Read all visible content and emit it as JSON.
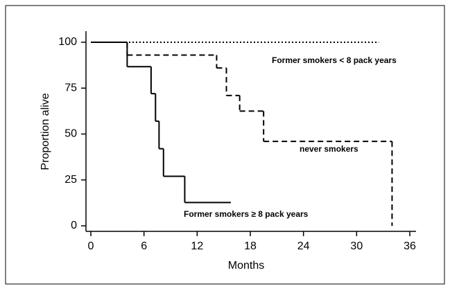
{
  "chart_data": {
    "type": "step",
    "xlabel": "Months",
    "ylabel": "Proportion alive",
    "xlim": [
      0,
      36
    ],
    "ylim": [
      0,
      100
    ],
    "xticks": [
      0,
      6,
      12,
      18,
      24,
      30,
      36
    ],
    "yticks": [
      0,
      25,
      50,
      75,
      100
    ],
    "series": [
      {
        "name": "Former smokers < 8 pack years",
        "color": "#000000",
        "dash": "dotted",
        "x": [
          0,
          32.5
        ],
        "values": [
          100,
          100
        ]
      },
      {
        "name": "never smokers",
        "color": "#000000",
        "dash": "dashed",
        "x": [
          0,
          4.1,
          14.2,
          15.3,
          16.8,
          19.5,
          34
        ],
        "values": [
          100,
          93,
          86,
          71,
          62.5,
          46,
          0
        ]
      },
      {
        "name": "Former smokers ≥ 8 pack years",
        "color": "#000000",
        "dash": "solid",
        "x": [
          0,
          4.1,
          6.8,
          7.3,
          7.7,
          8.2,
          10.6,
          15.8
        ],
        "values": [
          100,
          86.7,
          72,
          57,
          42,
          27,
          12.7,
          12.7
        ]
      }
    ]
  }
}
